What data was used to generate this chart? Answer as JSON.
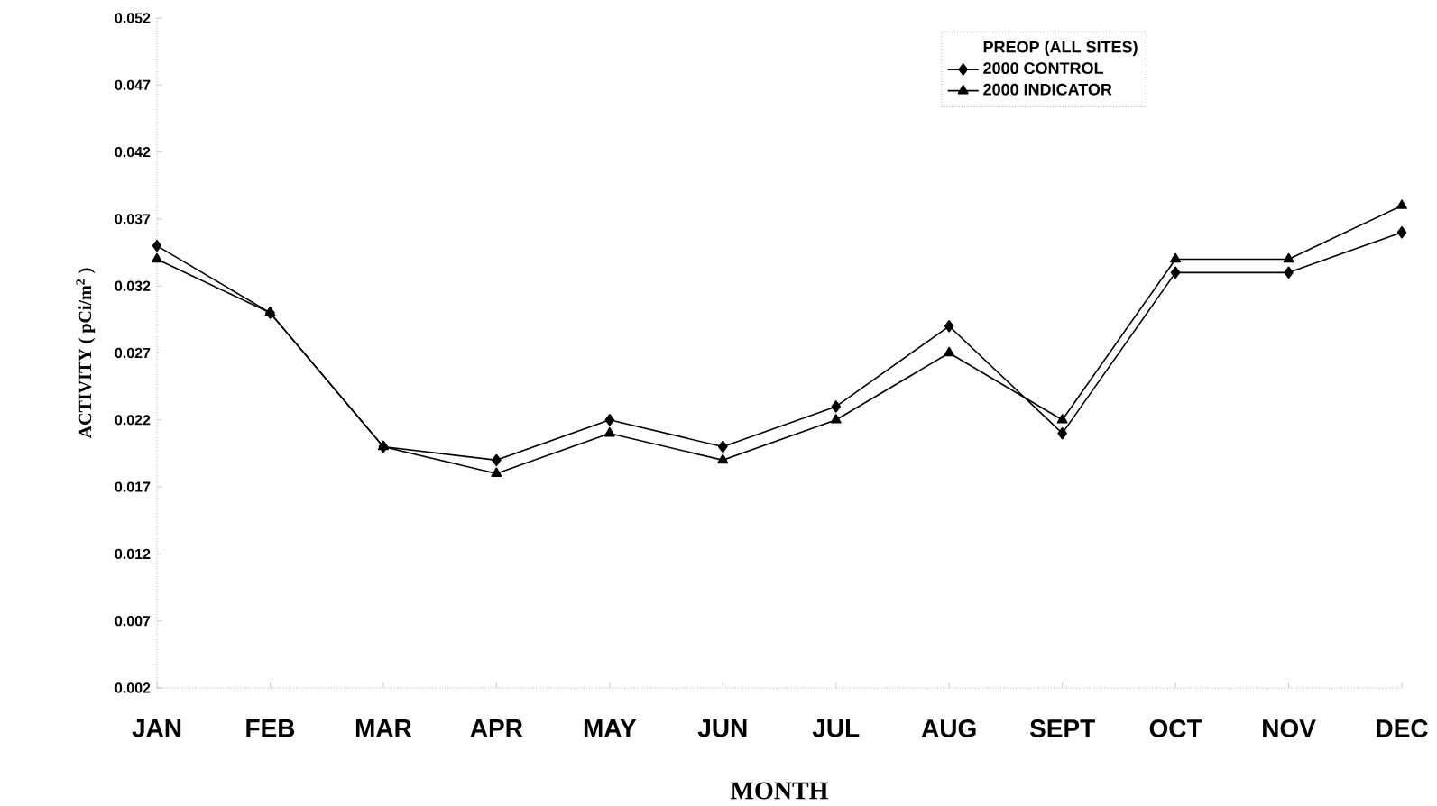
{
  "chart_data": {
    "type": "line",
    "xlabel": "MONTH",
    "ylabel": "ACTIVITY ( pCi/m$^{2}$ )",
    "legend_title": "PREOP (ALL SITES)",
    "categories": [
      "JAN",
      "FEB",
      "MAR",
      "APR",
      "MAY",
      "JUN",
      "JUL",
      "AUG",
      "SEPT",
      "OCT",
      "NOV",
      "DEC"
    ],
    "series": [
      {
        "name": "2000 CONTROL",
        "color": "#000000",
        "marker": "diamond",
        "values": [
          0.035,
          0.03,
          0.02,
          0.019,
          0.022,
          0.02,
          0.023,
          0.029,
          0.021,
          0.033,
          0.033,
          0.036
        ]
      },
      {
        "name": "2000 INDICATOR",
        "color": "#000000",
        "marker": "triangle",
        "values": [
          0.034,
          0.03,
          0.02,
          0.018,
          0.021,
          0.019,
          0.022,
          0.027,
          0.022,
          0.034,
          0.034,
          0.038
        ]
      }
    ],
    "ylim": [
      0.002,
      0.052
    ],
    "yticks": [
      0.002,
      0.007,
      0.012,
      0.017,
      0.022,
      0.027,
      0.032,
      0.037,
      0.042,
      0.047,
      0.052
    ],
    "legend": "top right",
    "grid": false,
    "line_style": "solid"
  }
}
